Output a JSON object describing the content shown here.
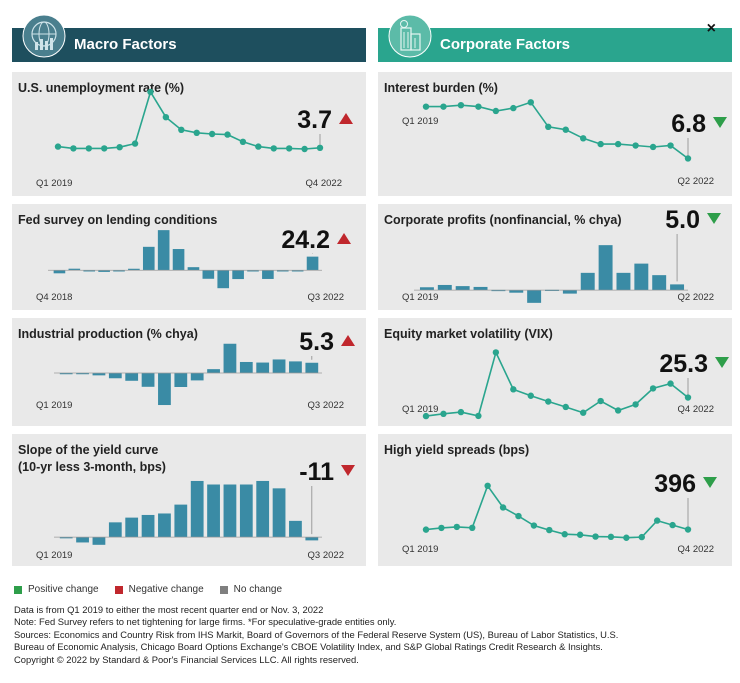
{
  "colors": {
    "teal_bar": "#3a8ba5",
    "line": "#2aa58e",
    "pos": "#2e9e4a",
    "neg": "#c0272d",
    "nochange": "#7f7f7f",
    "header_macro": "#1e4f5e",
    "header_corp": "#2aa58e"
  },
  "close_label": "×",
  "headers": {
    "macro": "Macro Factors",
    "corporate": "Corporate Factors"
  },
  "panels": {
    "unemployment": {
      "title": "U.S. unemployment rate (%)",
      "value": "3.7",
      "direction": "up",
      "start_label": "Q1 2019",
      "end_label": "Q4 2022"
    },
    "fed_survey": {
      "title": "Fed survey on lending conditions",
      "value": "24.2",
      "direction": "up",
      "start_label": "Q4 2018",
      "end_label": "Q3 2022"
    },
    "industrial": {
      "title": "Industrial production (% chya)",
      "value": "5.3",
      "direction": "up",
      "start_label": "Q1 2019",
      "end_label": "Q3 2022"
    },
    "yield_curve": {
      "title": "Slope of the yield curve",
      "title2": "(10-yr less 3-month, bps)",
      "value": "-11",
      "direction": "down",
      "start_label": "Q1 2019",
      "end_label": "Q3 2022"
    },
    "interest_burden": {
      "title": "Interest burden (%)",
      "value": "6.8",
      "direction": "down",
      "start_label": "Q1 2019",
      "end_label": "Q2 2022"
    },
    "corp_profits": {
      "title": "Corporate profits (nonfinancial, % chya)",
      "value": "5.0",
      "direction": "down",
      "start_label": "Q1 2019",
      "end_label": "Q2 2022"
    },
    "vix": {
      "title": "Equity market volatility (VIX)",
      "value": "25.3",
      "direction": "down",
      "start_label": "Q1 2019",
      "end_label": "Q4 2022"
    },
    "hy_spreads": {
      "title": "High yield spreads (bps)",
      "value": "396",
      "direction": "down",
      "start_label": "Q1 2019",
      "end_label": "Q4 2022"
    }
  },
  "chart_data": [
    {
      "id": "unemployment",
      "type": "line",
      "values": [
        3.9,
        3.6,
        3.6,
        3.6,
        3.8,
        4.4,
        13.0,
        8.8,
        6.7,
        6.2,
        6.0,
        5.9,
        4.7,
        3.9,
        3.6,
        3.6,
        3.5,
        3.7
      ],
      "ylim": [
        0,
        15
      ]
    },
    {
      "id": "fed_survey",
      "type": "bar",
      "values": [
        -5.4,
        2.8,
        -1.6,
        -2.9,
        0.0,
        2.7,
        41.6,
        71.2,
        37.7,
        5.5,
        -15.1,
        -31.8,
        -15.6,
        -1.5,
        -15.4,
        0,
        0,
        24.2
      ],
      "ylim": [
        -35,
        75
      ]
    },
    {
      "id": "industrial",
      "type": "bar",
      "values": [
        -0.4,
        -0.5,
        -1.2,
        -2.7,
        -4.0,
        -7.1,
        -16.5,
        -7.2,
        -3.8,
        2.0,
        15.1,
        5.7,
        5.4,
        7.0,
        6.0,
        5.3
      ],
      "ylim": [
        -17,
        16
      ]
    },
    {
      "id": "yield_curve",
      "type": "bar",
      "values": [
        -2,
        -18,
        -26,
        50,
        66,
        75,
        80,
        110,
        190,
        178,
        178,
        178,
        190,
        165,
        55,
        -11
      ],
      "ylim": [
        -30,
        200
      ]
    },
    {
      "id": "interest_burden",
      "type": "line",
      "values": [
        10.4,
        10.4,
        10.5,
        10.4,
        10.1,
        10.3,
        10.7,
        9.0,
        8.8,
        8.2,
        7.8,
        7.8,
        7.7,
        7.6,
        7.7,
        6.8
      ],
      "ylim": [
        6,
        11
      ]
    },
    {
      "id": "corp_profits",
      "type": "bar",
      "values": [
        2.5,
        4.5,
        3.5,
        2.8,
        0.2,
        -2.2,
        -11.0,
        0.3,
        -3.0,
        15.0,
        39.0,
        15.0,
        23.0,
        13.0,
        5.0
      ],
      "ylim": [
        -12,
        40
      ]
    },
    {
      "id": "vix",
      "type": "line",
      "values": [
        13.7,
        15.1,
        16.2,
        13.8,
        53.5,
        30.4,
        26.4,
        22.8,
        19.4,
        15.8,
        23.1,
        17.2,
        21.0,
        31.0,
        34.0,
        25.3
      ],
      "ylim": [
        10,
        55
      ]
    },
    {
      "id": "hy_spreads",
      "type": "line",
      "values": [
        395,
        414,
        425,
        415,
        880,
        640,
        545,
        440,
        390,
        344,
        338,
        318,
        315,
        305,
        312,
        495,
        445,
        396
      ],
      "ylim": [
        280,
        900
      ]
    }
  ],
  "legend": {
    "positive": "Positive change",
    "negative": "Negative change",
    "nochange": "No change"
  },
  "footnotes": {
    "line1": "Data is from Q1 2019 to either the most recent quarter end or Nov. 3, 2022",
    "line2": "Note: Fed Survey refers to net tightening for large firms. *For speculative-grade entities only.",
    "line3": "Sources: Economics and Country Risk from IHS Markit, Board of Governors of the Federal Reserve System (US), Bureau of Labor Statistics, U.S.",
    "line4": "Bureau of Economic Analysis, Chicago Board Options Exchange's CBOE Volatility Index, and  S&P Global Ratings Credit Research & Insights.",
    "line5": "Copyright © 2022 by Standard & Poor's Financial Services LLC. All rights reserved."
  }
}
